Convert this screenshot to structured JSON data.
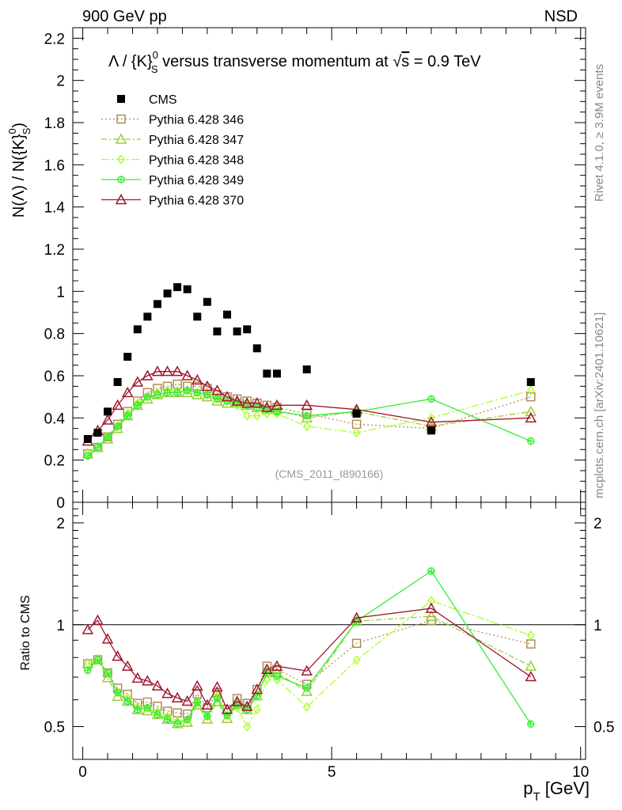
{
  "header": {
    "left": "900 GeV pp",
    "right": "NSD"
  },
  "side_labels": {
    "rivet": "Rivet 4.1.0, ≥ 3.9M events",
    "mcplots": "mcplots.cern.ch [arXiv:2401.10621]"
  },
  "chart_data": {
    "type": "scatter",
    "title_parts": {
      "lam": "Λ / {K}",
      "sup": "0",
      "sub": "S",
      "rest": " versus transverse momentum at ",
      "sqrt": "√",
      "s": "s",
      "eq": " = 0.9 TeV"
    },
    "watermark": "(CMS_2011_I890166)",
    "ylabel": {
      "a": "N(Λ)  /  N({K}",
      "sup": "0",
      "sub": "S",
      "close": ")"
    },
    "ratio_ylabel": "Ratio to CMS",
    "xlabel": {
      "p": "p",
      "sub": "T",
      "unit": " [GeV]"
    },
    "xlim": [
      -0.2,
      10.1
    ],
    "ylim": [
      0,
      2.25
    ],
    "ratio_ylim_log": [
      0.4,
      2.3
    ],
    "yticks": [
      "0",
      "0.2",
      "0.4",
      "0.6",
      "0.8",
      "1",
      "1.2",
      "1.4",
      "1.6",
      "1.8",
      "2",
      "2.2"
    ],
    "xticks": [
      "0",
      "5",
      "10"
    ],
    "ratio_yticks": [
      "0.5",
      "1",
      "2"
    ],
    "x": [
      0.1,
      0.3,
      0.5,
      0.7,
      0.9,
      1.1,
      1.3,
      1.5,
      1.7,
      1.9,
      2.1,
      2.3,
      2.5,
      2.7,
      2.9,
      3.1,
      3.3,
      3.5,
      3.7,
      3.9,
      4.5,
      5.5,
      7.0,
      9.0
    ],
    "series": [
      {
        "name": "CMS",
        "color": "#000000",
        "marker": "square-filled",
        "line": "none",
        "values": [
          0.3,
          0.33,
          0.43,
          0.57,
          0.69,
          0.82,
          0.88,
          0.94,
          0.99,
          1.02,
          1.01,
          0.88,
          0.95,
          0.81,
          0.89,
          0.81,
          0.82,
          0.73,
          0.61,
          0.61,
          0.63,
          0.42,
          0.34,
          0.57
        ]
      },
      {
        "name": "Pythia 6.428 346",
        "color": "#b08d57",
        "marker": "square-open",
        "line": "dotted",
        "values": [
          0.23,
          0.26,
          0.31,
          0.37,
          0.43,
          0.48,
          0.52,
          0.54,
          0.55,
          0.56,
          0.55,
          0.55,
          0.54,
          0.51,
          0.5,
          0.49,
          0.48,
          0.47,
          0.46,
          0.45,
          0.42,
          0.37,
          0.35,
          0.5
        ]
      },
      {
        "name": "Pythia 6.428 347",
        "color": "#9acd32",
        "marker": "triangle-open",
        "line": "dashdot",
        "values": [
          0.23,
          0.26,
          0.3,
          0.35,
          0.41,
          0.46,
          0.49,
          0.51,
          0.52,
          0.52,
          0.52,
          0.51,
          0.5,
          0.48,
          0.47,
          0.47,
          0.46,
          0.45,
          0.44,
          0.44,
          0.4,
          0.43,
          0.36,
          0.43
        ]
      },
      {
        "name": "Pythia 6.428 348",
        "color": "#adff2f",
        "marker": "diamond-open",
        "line": "dashdot2",
        "values": [
          0.23,
          0.26,
          0.31,
          0.36,
          0.42,
          0.47,
          0.5,
          0.52,
          0.53,
          0.53,
          0.53,
          0.52,
          0.51,
          0.5,
          0.48,
          0.46,
          0.41,
          0.41,
          0.42,
          0.42,
          0.36,
          0.33,
          0.4,
          0.53
        ]
      },
      {
        "name": "Pythia 6.428 349",
        "color": "#33ee33",
        "marker": "circle-cross",
        "line": "solid",
        "values": [
          0.22,
          0.26,
          0.31,
          0.36,
          0.41,
          0.46,
          0.5,
          0.51,
          0.52,
          0.52,
          0.53,
          0.52,
          0.51,
          0.49,
          0.48,
          0.47,
          0.46,
          0.45,
          0.44,
          0.43,
          0.41,
          0.43,
          0.49,
          0.29
        ]
      },
      {
        "name": "Pythia 6.428 370",
        "color": "#a0182d",
        "marker": "triangle-open",
        "line": "solid",
        "values": [
          0.29,
          0.34,
          0.39,
          0.46,
          0.52,
          0.57,
          0.6,
          0.62,
          0.62,
          0.62,
          0.6,
          0.58,
          0.55,
          0.53,
          0.5,
          0.48,
          0.47,
          0.47,
          0.45,
          0.46,
          0.46,
          0.44,
          0.38,
          0.4
        ]
      }
    ]
  }
}
